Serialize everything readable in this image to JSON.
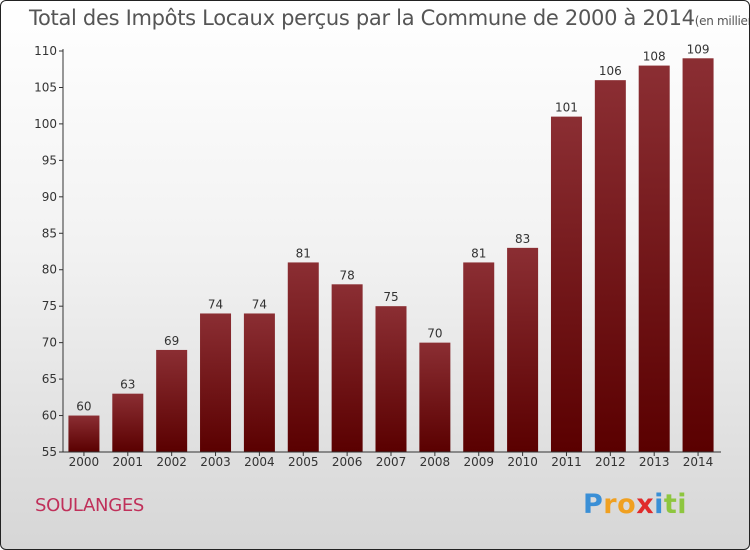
{
  "chart_data": {
    "type": "bar",
    "title": "Total des Impôts Locaux perçus par la Commune de 2000 à 2014",
    "subtitle": "(en milliers d'€)",
    "categories": [
      "2000",
      "2001",
      "2002",
      "2003",
      "2004",
      "2005",
      "2006",
      "2007",
      "2008",
      "2009",
      "2010",
      "2011",
      "2012",
      "2013",
      "2014"
    ],
    "values": [
      60,
      63,
      69,
      74,
      74,
      81,
      78,
      75,
      70,
      81,
      83,
      101,
      106,
      108,
      109
    ],
    "ylim": [
      55,
      110
    ],
    "yticks": [
      55,
      60,
      65,
      70,
      75,
      80,
      85,
      90,
      95,
      100,
      105,
      110
    ],
    "xlabel": "",
    "ylabel": "",
    "grid": false
  },
  "commune": "SOULANGES",
  "logo": {
    "letters": [
      "P",
      "r",
      "o",
      "x",
      "i",
      "t",
      "i"
    ],
    "colors": [
      "#3a8fd6",
      "#f0a020",
      "#f0a020",
      "#e02b2b",
      "#3a8fd6",
      "#8ec63f",
      "#8ec63f"
    ]
  },
  "colors": {
    "bar_top": "#8b2e33",
    "bar_bottom": "#5a0000",
    "axis": "#333333"
  }
}
